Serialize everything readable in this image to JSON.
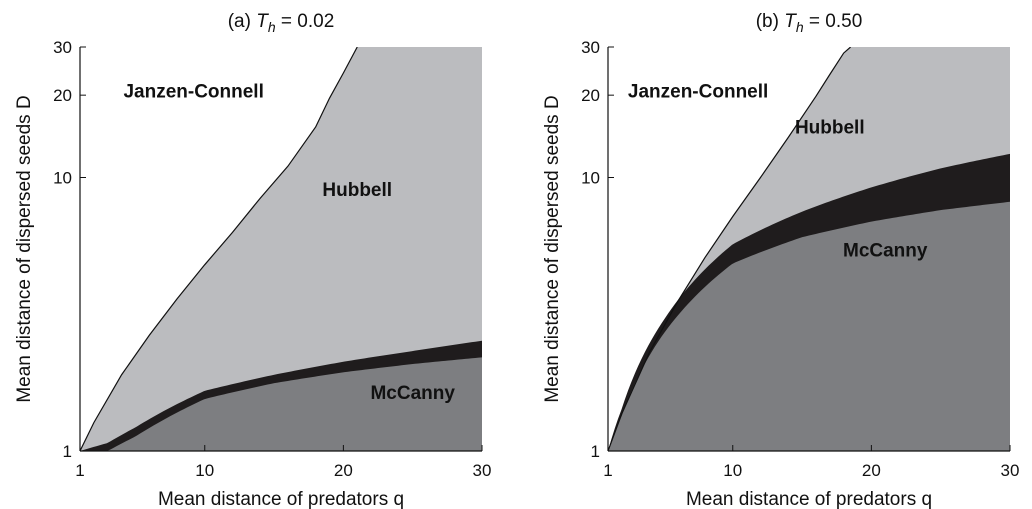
{
  "chart_data": [
    {
      "type": "area",
      "title": "(a) T_h = 0.02",
      "title_prefix": "(a) ",
      "title_var": "T",
      "title_sub": "h",
      "title_suffix": " = 0.02",
      "xlabel": "Mean distance of predators q",
      "ylabel": "Mean distance of dispersed seeds D",
      "xlim": [
        1,
        30
      ],
      "ylim": [
        1,
        30
      ],
      "x_ticks": [
        1,
        10,
        20,
        30
      ],
      "y_ticks": [
        1,
        10,
        20,
        30
      ],
      "y_scale": "log",
      "x_scale": "linear",
      "grid": false,
      "colors": {
        "jc": "#ffffff",
        "hubbell": "#bbbcbf",
        "band": "#1f1c1d",
        "mccanny": "#7d7e81"
      },
      "regions": [
        {
          "label": "Janzen-Connell",
          "fill": "jc"
        },
        {
          "label": "Hubbell",
          "fill": "hubbell"
        },
        {
          "label": "McCanny",
          "fill": "mccanny"
        }
      ],
      "region_label_positions": [
        {
          "label": "Janzen-Connell",
          "x": 9.2,
          "y": 19.6
        },
        {
          "label": "Hubbell",
          "x": 21,
          "y": 8.55
        },
        {
          "label": "McCanny",
          "x": 25,
          "y": 1.55
        }
      ],
      "boundary_jc_hubbell": {
        "x": [
          1,
          2,
          4,
          6,
          8,
          10,
          12,
          14,
          16,
          18,
          19,
          20,
          21
        ],
        "y": [
          1,
          1.27,
          1.9,
          2.65,
          3.6,
          4.8,
          6.3,
          8.4,
          11.0,
          15.3,
          19.5,
          24.1,
          30
        ]
      },
      "band_upper": {
        "x": [
          1,
          3,
          5,
          10,
          15,
          20,
          25,
          30
        ],
        "y": [
          1,
          1.07,
          1.22,
          1.66,
          1.9,
          2.12,
          2.32,
          2.53
        ]
      },
      "band_lower": {
        "x": [
          1,
          3,
          5,
          10,
          15,
          20,
          25,
          30
        ],
        "y": [
          1,
          1.0,
          1.13,
          1.55,
          1.77,
          1.94,
          2.08,
          2.2
        ]
      }
    },
    {
      "type": "area",
      "title": "(b) T_h = 0.50",
      "title_prefix": "(b) ",
      "title_var": "T",
      "title_sub": "h",
      "title_suffix": " = 0.50",
      "xlabel": "Mean distance of predators q",
      "ylabel": "Mean distance of dispersed seeds D",
      "xlim": [
        1,
        30
      ],
      "ylim": [
        1,
        30
      ],
      "x_ticks": [
        1,
        10,
        20,
        30
      ],
      "y_ticks": [
        1,
        10,
        20,
        30
      ],
      "y_scale": "log",
      "x_scale": "linear",
      "grid": false,
      "colors": {
        "jc": "#ffffff",
        "hubbell": "#bbbcbf",
        "band": "#1f1c1d",
        "mccanny": "#7d7e81"
      },
      "regions": [
        {
          "label": "Janzen-Connell",
          "fill": "jc"
        },
        {
          "label": "Hubbell",
          "fill": "hubbell"
        },
        {
          "label": "McCanny",
          "fill": "mccanny"
        }
      ],
      "region_label_positions": [
        {
          "label": "Janzen-Connell",
          "x": 7.5,
          "y": 19.6
        },
        {
          "label": "Hubbell",
          "x": 17,
          "y": 14.5
        },
        {
          "label": "McCanny",
          "x": 21,
          "y": 5.15
        }
      ],
      "boundary_jc_hubbell": {
        "x": [
          1,
          2,
          4,
          6,
          8,
          10,
          12,
          14,
          16,
          17,
          18,
          18.5
        ],
        "y": [
          1,
          1.37,
          2.3,
          3.5,
          5.1,
          7.2,
          10.0,
          14.0,
          19.8,
          23.8,
          28.5,
          30
        ]
      },
      "band_upper": {
        "x": [
          1,
          2,
          5,
          10,
          15,
          20,
          25,
          30
        ],
        "y": [
          1,
          1.43,
          3.0,
          5.7,
          7.5,
          9.2,
          10.8,
          12.2
        ]
      },
      "band_lower": {
        "x": [
          1,
          2,
          5,
          10,
          15,
          20,
          25,
          30
        ],
        "y": [
          1,
          1.35,
          2.68,
          4.85,
          6.05,
          6.9,
          7.6,
          8.15
        ]
      }
    }
  ]
}
